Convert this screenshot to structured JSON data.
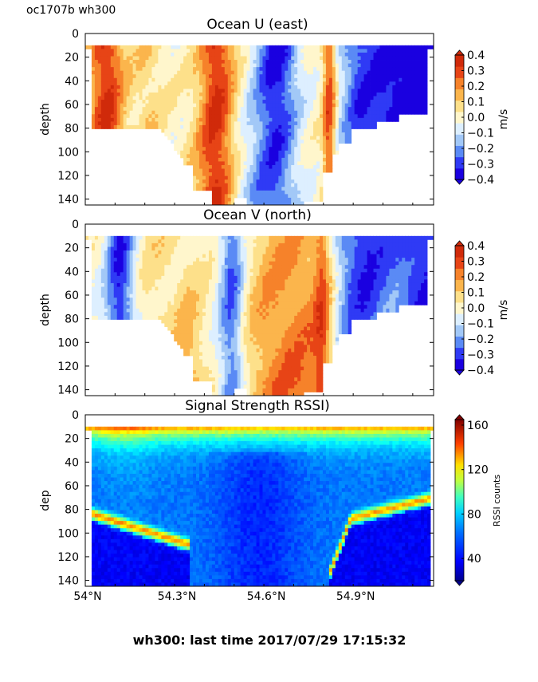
{
  "figure": {
    "tag": "oc1707b wh300",
    "footer": "wh300: last time 2017/07/29 17:15:32"
  },
  "chart_data": [
    {
      "type": "heatmap",
      "title": "Ocean U (east)",
      "ylabel": "depth",
      "xlabel": "",
      "yticks": [
        0,
        20,
        40,
        60,
        80,
        100,
        120,
        140
      ],
      "ylim": [
        145,
        0
      ],
      "xlim": [
        53.97,
        55.14
      ],
      "xticks": [],
      "colorbar": {
        "label": "m/s",
        "ticks": [
          "0.4",
          "0.3",
          "0.2",
          "0.1",
          "0.0",
          "−0.1",
          "−0.2",
          "−0.3",
          "−0.4"
        ],
        "range": [
          -0.4,
          0.4
        ],
        "colors": [
          "#1a00e0",
          "#2f3af5",
          "#5a8af5",
          "#a2c8f7",
          "#ddefff",
          "#fff6cc",
          "#fde08a",
          "#fbb54c",
          "#f6822a",
          "#e74416",
          "#d02a0a"
        ]
      }
    },
    {
      "type": "heatmap",
      "title": "Ocean V (north)",
      "ylabel": "depth",
      "xlabel": "",
      "yticks": [
        0,
        20,
        40,
        60,
        80,
        100,
        120,
        140
      ],
      "ylim": [
        145,
        0
      ],
      "xlim": [
        53.97,
        55.14
      ],
      "xticks": [],
      "colorbar": {
        "label": "m/s",
        "ticks": [
          "0.4",
          "0.3",
          "0.2",
          "0.1",
          "0.0",
          "−0.1",
          "−0.2",
          "−0.3",
          "−0.4"
        ],
        "range": [
          -0.4,
          0.4
        ],
        "colors": [
          "#1a00e0",
          "#2f3af5",
          "#5a8af5",
          "#a2c8f7",
          "#ddefff",
          "#fff6cc",
          "#fde08a",
          "#fbb54c",
          "#f6822a",
          "#e74416",
          "#d02a0a"
        ]
      }
    },
    {
      "type": "heatmap",
      "title": "Signal Strength RSSI)",
      "ylabel": "dep",
      "xlabel": "",
      "yticks": [
        0,
        20,
        40,
        60,
        80,
        100,
        120,
        140
      ],
      "ylim": [
        145,
        0
      ],
      "xlim": [
        53.97,
        55.14
      ],
      "xticks": [
        {
          "label": "54°N",
          "value": 53.97
        },
        {
          "label": "54.3°N",
          "value": 54.27
        },
        {
          "label": "54.6°N",
          "value": 54.57
        },
        {
          "label": "54.9°N",
          "value": 54.87
        }
      ],
      "colorbar": {
        "label": "RSSI counts",
        "ticks": [
          "160",
          "120",
          "80",
          "40"
        ],
        "tick_values": [
          160,
          120,
          80,
          40
        ],
        "range": [
          20,
          165
        ],
        "colors": [
          "#00008f",
          "#0000ff",
          "#0060ff",
          "#00c0ff",
          "#40ffbf",
          "#bfff40",
          "#ffdf00",
          "#ff6000",
          "#df0000",
          "#800000"
        ]
      }
    }
  ]
}
